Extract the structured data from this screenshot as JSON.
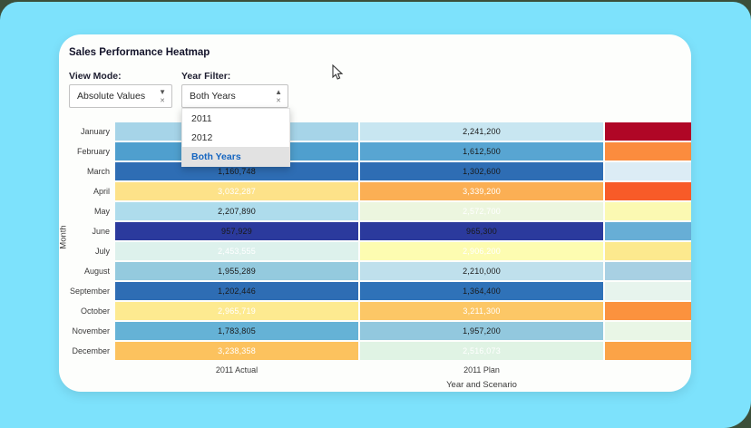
{
  "page": {
    "background_color": "#7de2fc",
    "card_color": "#fdfefc",
    "frame_color": "#3b4f3a"
  },
  "header": {
    "title": "Sales Performance Heatmap"
  },
  "controls": {
    "view_mode": {
      "label": "View Mode:",
      "value": "Absolute Values",
      "state": "closed"
    },
    "year_filter": {
      "label": "Year Filter:",
      "value": "Both Years",
      "state": "open",
      "options": [
        {
          "label": "2011",
          "selected": false
        },
        {
          "label": "2012",
          "selected": false
        },
        {
          "label": "Both Years",
          "selected": true
        }
      ]
    },
    "icons": {
      "caret_down": "▼",
      "caret_up": "▲",
      "clear": "✕"
    }
  },
  "chart_data": {
    "type": "heatmap",
    "title": "Sales Performance Heatmap",
    "xlabel": "Year and Scenario",
    "ylabel": "Month",
    "legend": "none",
    "rows": [
      "January",
      "February",
      "March",
      "April",
      "May",
      "June",
      "July",
      "August",
      "September",
      "October",
      "November",
      "December"
    ],
    "visible_x_tick_labels": [
      "2011 Actual",
      "2011 Plan"
    ],
    "note_third_column": "third column clipped by card edge, values and label not visible",
    "columns": [
      {
        "label": "2011 Actual",
        "cells": [
          {
            "value": null,
            "bg": "#a6d4e8",
            "text": "#1a1a1a"
          },
          {
            "value": null,
            "bg": "#4f9fce",
            "text": "#1a1a1a"
          },
          {
            "value": "1,160,748",
            "bg": "#2e6db4",
            "text": "#1a1a1a"
          },
          {
            "value": "3,032,287",
            "bg": "#fde289",
            "text": "#ffffff"
          },
          {
            "value": "2,207,890",
            "bg": "#aedcec",
            "text": "#1a1a1a"
          },
          {
            "value": "957,929",
            "bg": "#2b3a9d",
            "text": "#1a1a1a"
          },
          {
            "value": "2,453,555",
            "bg": "#ddf1ec",
            "text": "#ffffff"
          },
          {
            "value": "1,955,289",
            "bg": "#94cade",
            "text": "#1a1a1a"
          },
          {
            "value": "1,202,446",
            "bg": "#2e6db4",
            "text": "#1a1a1a"
          },
          {
            "value": "2,965,719",
            "bg": "#fdea90",
            "text": "#ffffff"
          },
          {
            "value": "1,783,805",
            "bg": "#65b2d6",
            "text": "#1a1a1a"
          },
          {
            "value": "3,238,358",
            "bg": "#fcc25e",
            "text": "#ffffff"
          }
        ]
      },
      {
        "label": "2011 Plan",
        "cells": [
          {
            "value": "2,241,200",
            "bg": "#c8e6f1",
            "text": "#1a1a1a"
          },
          {
            "value": "1,612,500",
            "bg": "#58a5d2",
            "text": "#1a1a1a"
          },
          {
            "value": "1,302,600",
            "bg": "#2e6db4",
            "text": "#1a1a1a"
          },
          {
            "value": "3,339,200",
            "bg": "#fbaf54",
            "text": "#ffffff"
          },
          {
            "value": "2,572,700",
            "bg": "#ecf6df",
            "text": "#ffffff"
          },
          {
            "value": "965,300",
            "bg": "#2b3a9d",
            "text": "#1a1a1a"
          },
          {
            "value": "2,906,200",
            "bg": "#fdfcb1",
            "text": "#ffffff"
          },
          {
            "value": "2,210,000",
            "bg": "#bfe0ec",
            "text": "#1a1a1a"
          },
          {
            "value": "1,364,400",
            "bg": "#2f72b8",
            "text": "#1a1a1a"
          },
          {
            "value": "3,211,300",
            "bg": "#fcc766",
            "text": "#ffffff"
          },
          {
            "value": "1,957,200",
            "bg": "#92c8de",
            "text": "#1a1a1a"
          },
          {
            "value": "2,516,073",
            "bg": "#e0f3e4",
            "text": "#ffffff"
          }
        ]
      },
      {
        "label": null,
        "cells": [
          {
            "value": null,
            "bg": "#b00626",
            "text": "#ffffff"
          },
          {
            "value": null,
            "bg": "#fb8c3e",
            "text": "#1a1a1a"
          },
          {
            "value": null,
            "bg": "#dcecf5",
            "text": "#1a1a1a"
          },
          {
            "value": null,
            "bg": "#f85b28",
            "text": "#ffffff"
          },
          {
            "value": null,
            "bg": "#fbf9b2",
            "text": "#1a1a1a"
          },
          {
            "value": null,
            "bg": "#67aed6",
            "text": "#1a1a1a"
          },
          {
            "value": null,
            "bg": "#fce98e",
            "text": "#1a1a1a"
          },
          {
            "value": null,
            "bg": "#a8d0e3",
            "text": "#1a1a1a"
          },
          {
            "value": null,
            "bg": "#e7f4ed",
            "text": "#1a1a1a"
          },
          {
            "value": null,
            "bg": "#fb923e",
            "text": "#1a1a1a"
          },
          {
            "value": null,
            "bg": "#e9f6e6",
            "text": "#1a1a1a"
          },
          {
            "value": null,
            "bg": "#fba347",
            "text": "#1a1a1a"
          }
        ]
      }
    ]
  }
}
